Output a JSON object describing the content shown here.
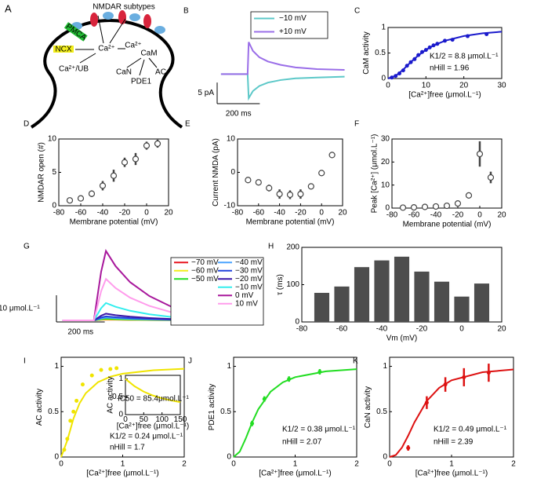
{
  "diagram": {
    "label": "A",
    "title": "NMDAR subtypes",
    "labels": [
      "Ca²⁺",
      "Ca²⁺",
      "CaM",
      "NCX",
      "PMCA",
      "Ca²⁺/UB",
      "CaN",
      "PDE1",
      "AC"
    ]
  },
  "chart_data": [
    {
      "type": "line",
      "label": "B",
      "x": [
        0,
        100,
        125,
        130,
        150,
        180,
        220,
        280,
        350,
        450,
        580
      ],
      "xlim": [
        -18,
        600
      ],
      "ylim": [
        -7,
        12
      ],
      "series": [
        {
          "name": "−10 mV",
          "color": "#5cc8c8",
          "values": [
            0,
            0,
            0,
            -5.7,
            -4,
            -2.8,
            -2,
            -1.4,
            -1,
            -0.8,
            -0.6
          ]
        },
        {
          "name": "+10 mV",
          "color": "#9a6ee8",
          "values": [
            0,
            0,
            0,
            7.6,
            5.5,
            4,
            3,
            2.2,
            1.6,
            1.2,
            1
          ]
        }
      ],
      "scale_y": {
        "value": 5,
        "label": "5 pA"
      },
      "scale_x": {
        "value": 200,
        "label": "200 ms"
      }
    },
    {
      "type": "scatter",
      "label": "C",
      "xlabel": "[Ca²⁺]free (μmol.L⁻¹)",
      "ylabel": "CaM activity",
      "color": "#1a1acc",
      "marker": "filled",
      "xlim": [
        0,
        30
      ],
      "ylim": [
        0,
        1
      ],
      "xticks": [
        0,
        10,
        20,
        30
      ],
      "yticks": [
        0,
        0.5,
        1
      ],
      "x": [
        1,
        2,
        3,
        4,
        5,
        6,
        7,
        8,
        9,
        10,
        11,
        12,
        13,
        15,
        17,
        21,
        26
      ],
      "values": [
        0.02,
        0.05,
        0.1,
        0.16,
        0.25,
        0.32,
        0.38,
        0.46,
        0.52,
        0.56,
        0.61,
        0.65,
        0.68,
        0.74,
        0.76,
        0.83,
        0.87
      ],
      "fit": {
        "x": [
          0,
          2,
          4,
          6,
          8,
          10,
          12,
          15,
          20,
          25,
          30
        ],
        "values": [
          0,
          0.052,
          0.175,
          0.321,
          0.453,
          0.562,
          0.647,
          0.74,
          0.833,
          0.886,
          0.917
        ]
      },
      "annotations": [
        "K1/2 = 8.8  μmol.L⁻¹",
        "nHill = 1.96"
      ]
    },
    {
      "type": "scatter",
      "label": "D",
      "xlabel": "Membrane potential (mV)",
      "ylabel": "NMDAR open (#)",
      "color": "#444444",
      "marker": "open",
      "xlim": [
        -80,
        20
      ],
      "ylim": [
        0,
        10
      ],
      "xticks": [
        -80,
        -60,
        -40,
        -20,
        0,
        20
      ],
      "yticks": [
        0,
        5,
        10
      ],
      "x": [
        -70,
        -60,
        -50,
        -40,
        -30,
        -20,
        -10,
        0,
        10
      ],
      "values": [
        0.8,
        1.1,
        1.8,
        3.0,
        4.5,
        6.5,
        7.0,
        9.0,
        9.3
      ],
      "errors": [
        0.3,
        0.4,
        0.5,
        0.7,
        0.9,
        0.7,
        0.9,
        0.6,
        0.6
      ]
    },
    {
      "type": "scatter",
      "label": "E",
      "xlabel": "Membrane potential (mV)",
      "ylabel": "Current NMDA (pA)",
      "color": "#444444",
      "marker": "open",
      "xlim": [
        -80,
        20
      ],
      "ylim": [
        -10,
        10
      ],
      "xticks": [
        -80,
        -60,
        -40,
        -20,
        0,
        20
      ],
      "yticks": [
        -10,
        0,
        10
      ],
      "x": [
        -70,
        -60,
        -50,
        -40,
        -30,
        -20,
        -10,
        0,
        10
      ],
      "values": [
        -2.3,
        -3.0,
        -4.7,
        -6.5,
        -6.7,
        -6.5,
        -4.2,
        -0.2,
        5.2
      ],
      "errors": [
        0.9,
        0.7,
        1.0,
        1.4,
        1.3,
        1.4,
        0.5,
        0.3,
        0.3
      ]
    },
    {
      "type": "scatter",
      "label": "F",
      "xlabel": "Membrane potential (mV)",
      "ylabel": "Peak [Ca²⁺] (μmol.L⁻¹)",
      "color": "#444444",
      "marker": "open",
      "xlim": [
        -80,
        20
      ],
      "ylim": [
        0,
        30
      ],
      "xticks": [
        -80,
        -60,
        -40,
        -20,
        0,
        20
      ],
      "yticks": [
        0,
        10,
        20,
        30
      ],
      "x": [
        -70,
        -60,
        -50,
        -40,
        -30,
        -20,
        -10,
        0,
        10
      ],
      "values": [
        0.2,
        0.3,
        0.5,
        0.7,
        1.0,
        2.0,
        5.5,
        23.5,
        13.3
      ],
      "errors": [
        0.2,
        0.2,
        0.3,
        0.3,
        0.4,
        0.5,
        0.8,
        5.5,
        2.5
      ]
    },
    {
      "type": "line",
      "label": "G",
      "x": [
        0,
        130,
        160,
        180,
        220,
        280,
        360,
        460,
        580,
        720,
        800
      ],
      "xlim": [
        -25,
        845
      ],
      "ylim": [
        -0.6,
        30
      ],
      "series": [
        {
          "name": "−70 mV",
          "color": "#e8141e",
          "values": [
            0,
            0,
            0.21,
            0.3,
            0.23,
            0.17,
            0.11,
            0.05,
            0.02,
            0.01,
            0
          ]
        },
        {
          "name": "−60 mV",
          "color": "#f2ee1c",
          "values": [
            0,
            0,
            0.28,
            0.4,
            0.31,
            0.22,
            0.14,
            0.07,
            0.03,
            0.01,
            0
          ]
        },
        {
          "name": "−50 mV",
          "color": "#22dd22",
          "values": [
            0,
            0,
            0.42,
            0.6,
            0.47,
            0.33,
            0.21,
            0.11,
            0.05,
            0.02,
            0.01
          ]
        },
        {
          "name": "−40 mV",
          "color": "#4aa3ff",
          "values": [
            0,
            0,
            0.7,
            1,
            0.78,
            0.55,
            0.35,
            0.18,
            0.08,
            0.03,
            0.01
          ]
        },
        {
          "name": "−30 mV",
          "color": "#2244dd",
          "values": [
            0,
            0,
            1.05,
            1.5,
            1.17,
            0.83,
            0.53,
            0.27,
            0.12,
            0.05,
            0.02
          ]
        },
        {
          "name": "−20 mV",
          "color": "#3a16a8",
          "values": [
            0,
            0,
            1.75,
            2.5,
            1.95,
            1.38,
            0.88,
            0.45,
            0.2,
            0.08,
            0.03
          ]
        },
        {
          "name": "−10 mV",
          "color": "#33eeee",
          "values": [
            0,
            0,
            4.55,
            6.5,
            5.07,
            3.58,
            2.28,
            1.17,
            0.52,
            0.2,
            0.07
          ]
        },
        {
          "name": "0 mV",
          "color": "#a8189c",
          "values": [
            0,
            0,
            18.2,
            26,
            20.3,
            14.3,
            9.1,
            4.7,
            2.1,
            0.8,
            0.3
          ]
        },
        {
          "name": "10 mV",
          "color": "#ff9cec",
          "values": [
            0,
            0,
            10.9,
            15.5,
            12.1,
            8.5,
            5.4,
            2.8,
            1.2,
            0.5,
            0.2
          ]
        }
      ],
      "scale_y": {
        "value": 10,
        "label": "10 μmol.L⁻¹"
      },
      "scale_x": {
        "value": 200,
        "label": "200 ms"
      }
    },
    {
      "type": "bar",
      "label": "H",
      "xlabel": "Vm (mV)",
      "ylabel": "τ (ms)",
      "color": "#4d4d4d",
      "xlim": [
        -80,
        20
      ],
      "ylim": [
        0,
        200
      ],
      "xticks": [
        -80,
        -60,
        -40,
        -20,
        0,
        20
      ],
      "yticks": [
        0,
        100,
        200
      ],
      "x": [
        -70,
        -60,
        -50,
        -40,
        -30,
        -20,
        -10,
        0,
        10
      ],
      "values": [
        78,
        95,
        147,
        165,
        175,
        135,
        108,
        68,
        103
      ]
    },
    {
      "type": "scatter",
      "label": "I",
      "xlabel": "[Ca²⁺]free (μmol.L⁻¹)",
      "ylabel": "AC activity",
      "color": "#f0e400",
      "marker": "filled",
      "xlim": [
        0,
        2
      ],
      "ylim": [
        0,
        1.1
      ],
      "xticks": [
        0,
        1,
        2
      ],
      "yticks": [
        0,
        0.5,
        1
      ],
      "x": [
        0.05,
        0.1,
        0.15,
        0.2,
        0.25,
        0.35,
        0.5,
        0.65,
        0.8,
        0.9
      ],
      "values": [
        0.08,
        0.2,
        0.4,
        0.5,
        0.62,
        0.8,
        0.9,
        0.96,
        0.97,
        0.98
      ],
      "fit": {
        "x": [
          0,
          0.1,
          0.2,
          0.3,
          0.4,
          0.6,
          0.8,
          1,
          1.5,
          2
        ],
        "values": [
          0,
          0.184,
          0.423,
          0.593,
          0.704,
          0.826,
          0.886,
          0.919,
          0.957,
          0.973
        ]
      },
      "annotations": [
        "K1/2 = 0.24  μmol.L⁻¹",
        "nHill = 1.7"
      ],
      "inset": {
        "type": "scatter",
        "xlabel": "[Ca²⁺]free (μmol.L⁻¹)",
        "ylabel": "AC activity",
        "color": "#f0e400",
        "xlim": [
          0,
          150
        ],
        "ylim": [
          0,
          1.1
        ],
        "xticks": [
          0,
          50,
          100,
          150
        ],
        "yticks": [
          0,
          0.5,
          1
        ],
        "fit": {
          "x": [
            0,
            25,
            50,
            75,
            100,
            125,
            150
          ],
          "values": [
            1,
            0.794,
            0.643,
            0.536,
            0.457,
            0.397,
            0.35
          ]
        },
        "annotations": [
          "IC50 = 85.4μmol.L⁻¹"
        ]
      }
    },
    {
      "type": "scatter",
      "label": "J",
      "xlabel": "[Ca²⁺]free (μmol.L⁻¹)",
      "ylabel": "PDE1 activity",
      "color": "#22dd22",
      "marker": "filled",
      "xlim": [
        0,
        2
      ],
      "ylim": [
        0,
        1.1
      ],
      "xticks": [
        0,
        1,
        2
      ],
      "yticks": [
        0,
        0.5,
        1
      ],
      "x": [
        0.3,
        0.5,
        0.9,
        1.4
      ],
      "values": [
        0.37,
        0.64,
        0.86,
        0.94
      ],
      "errors": [
        0.03,
        0.03,
        0.03,
        0.03
      ],
      "fit": {
        "x": [
          0,
          0.1,
          0.2,
          0.3,
          0.4,
          0.6,
          0.8,
          1,
          1.5,
          2
        ],
        "values": [
          0,
          0.059,
          0.209,
          0.38,
          0.526,
          0.72,
          0.824,
          0.881,
          0.945,
          0.969
        ]
      },
      "annotations": [
        "K1/2 = 0.38  μmol.L⁻¹",
        "nHill = 2.07"
      ]
    },
    {
      "type": "scatter",
      "label": "K",
      "xlabel": "[Ca²⁺]free (μmol.L⁻¹)",
      "ylabel": "CaN activity",
      "color": "#dd1111",
      "marker": "filled",
      "xlim": [
        0,
        2
      ],
      "ylim": [
        0,
        1.1
      ],
      "xticks": [
        0,
        1,
        2
      ],
      "yticks": [
        0,
        0.5,
        1
      ],
      "x": [
        0.3,
        0.6,
        0.9,
        1.2,
        1.6
      ],
      "values": [
        0.1,
        0.6,
        0.8,
        0.88,
        0.93
      ],
      "errors": [
        0.03,
        0.07,
        0.08,
        0.1,
        0.1
      ],
      "fit": {
        "x": [
          0,
          0.1,
          0.2,
          0.3,
          0.4,
          0.6,
          0.8,
          1,
          1.5,
          2
        ],
        "values": [
          0,
          0.022,
          0.105,
          0.236,
          0.381,
          0.618,
          0.763,
          0.846,
          0.935,
          0.966
        ]
      },
      "annotations": [
        "K1/2 = 0.49  μmol.L⁻¹",
        "nHill = 2.39"
      ]
    }
  ]
}
